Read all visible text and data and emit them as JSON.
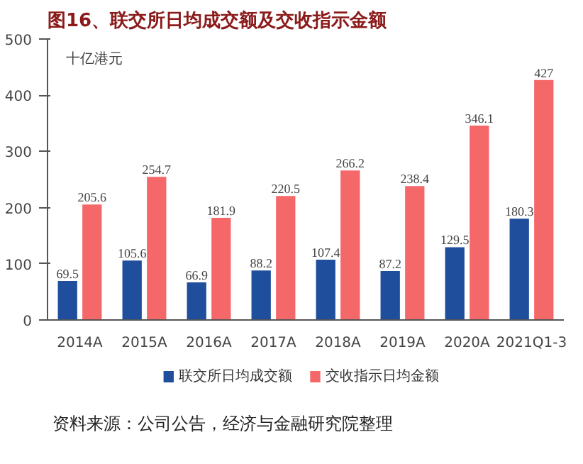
{
  "chart_data": {
    "type": "bar",
    "title": "图16、联交所日均成交额及交收指示金额",
    "ylabel": "十亿港元",
    "categories": [
      "2014A",
      "2015A",
      "2016A",
      "2017A",
      "2018A",
      "2019A",
      "2020A",
      "2021Q1-3"
    ],
    "series": [
      {
        "name": "联交所日均成交额",
        "color": "#1f4e9c",
        "values": [
          69.5,
          105.6,
          66.9,
          88.2,
          107.4,
          87.2,
          129.5,
          180.3
        ]
      },
      {
        "name": "交收指示日均金额",
        "color": "#f4686a",
        "values": [
          205.6,
          254.7,
          181.9,
          220.5,
          266.2,
          238.4,
          346.1,
          427
        ]
      }
    ],
    "ylim": [
      0,
      500
    ],
    "yticks": [
      0,
      100,
      200,
      300,
      400,
      500
    ],
    "data_labels": true,
    "legend": "bottom",
    "annotations": [
      "资料来源：公司公告，经济与金融研究院整理"
    ]
  }
}
